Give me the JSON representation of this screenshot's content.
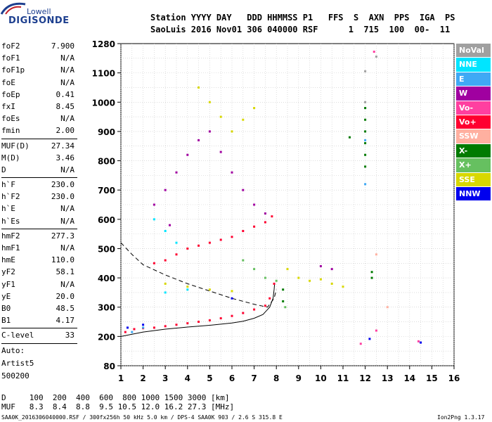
{
  "logo": {
    "top": "Lowell",
    "main": "DIGISONDE"
  },
  "header": {
    "line1": "Station YYYY DAY   DDD HHMMSS P1   FFS  S  AXN  PPS  IGA  PS",
    "line2": "SaoLuis 2016 Nov01 306 040000 RSF      1  715  100  00-  11"
  },
  "params": [
    {
      "name": "foF2",
      "value": "7.900"
    },
    {
      "name": "foF1",
      "value": "N/A"
    },
    {
      "name": "foF1p",
      "value": "N/A"
    },
    {
      "name": "foE",
      "value": "N/A"
    },
    {
      "name": "foEp",
      "value": "0.41"
    },
    {
      "name": "fxI",
      "value": "8.45"
    },
    {
      "name": "foEs",
      "value": "N/A"
    },
    {
      "name": "fmin",
      "value": "2.00"
    },
    {
      "name": "MUF(D)",
      "value": "27.34"
    },
    {
      "name": "M(D)",
      "value": "3.46"
    },
    {
      "name": "D",
      "value": "N/A"
    },
    {
      "name": "h`F",
      "value": "230.0"
    },
    {
      "name": "h`F2",
      "value": "230.0"
    },
    {
      "name": "h`E",
      "value": "N/A"
    },
    {
      "name": "h`Es",
      "value": "N/A"
    },
    {
      "name": "hmF2",
      "value": "277.3"
    },
    {
      "name": "hmF1",
      "value": "N/A"
    },
    {
      "name": "hmE",
      "value": "110.0"
    },
    {
      "name": "yF2",
      "value": "58.1"
    },
    {
      "name": "yF1",
      "value": "N/A"
    },
    {
      "name": "yE",
      "value": "20.0"
    },
    {
      "name": "B0",
      "value": "48.5"
    },
    {
      "name": "B1",
      "value": "4.17"
    },
    {
      "name": "C-level",
      "value": "33"
    }
  ],
  "auto_label": "Auto:",
  "artist_label": "Artist5",
  "artist_version": "500200",
  "bottom": {
    "d_line": "D     100  200  400  600  800 1000 1500 3000 [km]",
    "muf_line": "MUF   8.3  8.4  8.8  9.5 10.5 12.0 16.2 27.3 [MHz]",
    "file_line": "SAA0K_2016306040000.RSF / 300fx256h 50 kHz 5.0 km / DPS-4 SAA0K 903 / 2.6 S 315.8 E",
    "version": "Ion2Png 1.3.17"
  },
  "legend": [
    {
      "label": "NoVal",
      "color": "#a0a0a0"
    },
    {
      "label": "NNE",
      "color": "#00e5ff"
    },
    {
      "label": "E",
      "color": "#3fa9f5"
    },
    {
      "label": "W",
      "color": "#a000a0"
    },
    {
      "label": "Vo-",
      "color": "#ff3fa0"
    },
    {
      "label": "Vo+",
      "color": "#ff0030"
    },
    {
      "label": "SSW",
      "color": "#ffb0a0"
    },
    {
      "label": "X-",
      "color": "#007a00"
    },
    {
      "label": "X+",
      "color": "#66c060"
    },
    {
      "label": "SSE",
      "color": "#d8d800"
    },
    {
      "label": "NNW",
      "color": "#0000ee"
    }
  ],
  "chart_data": {
    "type": "scatter",
    "title": "",
    "xlabel": "",
    "ylabel": "",
    "xlim": [
      1,
      16
    ],
    "ylim": [
      80,
      1280
    ],
    "x_ticks": [
      1,
      2,
      3,
      4,
      5,
      6,
      7,
      8,
      9,
      10,
      11,
      12,
      13,
      14,
      15,
      16
    ],
    "y_ticks": [
      80,
      200,
      300,
      400,
      500,
      600,
      700,
      800,
      900,
      1000,
      1100,
      1280
    ],
    "grid": true,
    "legend_position": "right",
    "series": [
      {
        "name": "Vo+",
        "color": "#ff0030",
        "points": [
          [
            1.2,
            215
          ],
          [
            1.6,
            225
          ],
          [
            2.0,
            228
          ],
          [
            2.5,
            230
          ],
          [
            3.0,
            235
          ],
          [
            3.5,
            240
          ],
          [
            4.0,
            245
          ],
          [
            4.5,
            250
          ],
          [
            5.0,
            255
          ],
          [
            5.5,
            262
          ],
          [
            6.0,
            270
          ],
          [
            6.5,
            280
          ],
          [
            7.0,
            292
          ],
          [
            7.5,
            305
          ],
          [
            7.7,
            330
          ],
          [
            7.9,
            380
          ],
          [
            2.5,
            450
          ],
          [
            3.0,
            460
          ],
          [
            3.5,
            480
          ],
          [
            4.0,
            500
          ],
          [
            4.5,
            510
          ],
          [
            5.0,
            520
          ],
          [
            5.5,
            530
          ],
          [
            6.0,
            540
          ],
          [
            6.5,
            560
          ],
          [
            7.0,
            575
          ],
          [
            7.5,
            590
          ],
          [
            7.8,
            610
          ]
        ]
      },
      {
        "name": "W",
        "color": "#a000a0",
        "points": [
          [
            3.0,
            700
          ],
          [
            3.5,
            760
          ],
          [
            4.0,
            820
          ],
          [
            4.5,
            870
          ],
          [
            5.0,
            900
          ],
          [
            5.5,
            830
          ],
          [
            6.0,
            760
          ],
          [
            6.5,
            700
          ],
          [
            7.0,
            650
          ],
          [
            7.5,
            620
          ],
          [
            2.5,
            650
          ],
          [
            3.2,
            580
          ],
          [
            10.0,
            440
          ],
          [
            10.5,
            430
          ]
        ]
      },
      {
        "name": "SSE",
        "color": "#d8d800",
        "points": [
          [
            4.5,
            1050
          ],
          [
            5.0,
            1000
          ],
          [
            5.5,
            950
          ],
          [
            6.0,
            900
          ],
          [
            6.5,
            940
          ],
          [
            7.0,
            980
          ],
          [
            8.5,
            430
          ],
          [
            9.0,
            400
          ],
          [
            9.5,
            390
          ],
          [
            10.0,
            395
          ],
          [
            10.5,
            380
          ],
          [
            11.0,
            370
          ],
          [
            3.0,
            380
          ],
          [
            4.0,
            370
          ],
          [
            5.0,
            360
          ],
          [
            6.0,
            355
          ]
        ]
      },
      {
        "name": "NNE",
        "color": "#00e5ff",
        "points": [
          [
            2.5,
            600
          ],
          [
            3.0,
            560
          ],
          [
            3.5,
            520
          ],
          [
            3.0,
            350
          ],
          [
            4.0,
            360
          ]
        ]
      },
      {
        "name": "X-",
        "color": "#007a00",
        "points": [
          [
            12.0,
            980
          ],
          [
            12.0,
            940
          ],
          [
            12.0,
            900
          ],
          [
            12.0,
            860
          ],
          [
            12.0,
            820
          ],
          [
            12.0,
            780
          ],
          [
            12.3,
            400
          ],
          [
            12.3,
            420
          ],
          [
            11.3,
            880
          ],
          [
            8.3,
            360
          ],
          [
            8.3,
            320
          ]
        ]
      },
      {
        "name": "X+",
        "color": "#66c060",
        "points": [
          [
            6.5,
            460
          ],
          [
            7.0,
            430
          ],
          [
            7.5,
            400
          ],
          [
            8.0,
            390
          ],
          [
            8.4,
            300
          ]
        ]
      },
      {
        "name": "E",
        "color": "#3fa9f5",
        "points": [
          [
            1.5,
            215
          ],
          [
            2.0,
            230
          ],
          [
            12.0,
            870
          ],
          [
            12.0,
            720
          ]
        ]
      },
      {
        "name": "NNW",
        "color": "#0000ee",
        "points": [
          [
            1.3,
            230
          ],
          [
            2.0,
            240
          ],
          [
            6.0,
            330
          ],
          [
            12.2,
            190
          ],
          [
            14.5,
            175
          ]
        ]
      },
      {
        "name": "Vo-",
        "color": "#ff3fa0",
        "points": [
          [
            12.4,
            1230
          ],
          [
            12.5,
            220
          ],
          [
            14.4,
            180
          ],
          [
            11.8,
            170
          ]
        ]
      },
      {
        "name": "SSW",
        "color": "#ffb0a0",
        "points": [
          [
            12.5,
            480
          ],
          [
            13.0,
            300
          ]
        ]
      },
      {
        "name": "NoVal",
        "color": "#a0a0a0",
        "points": [
          [
            12.0,
            1110
          ],
          [
            12.0,
            1000
          ],
          [
            12.5,
            1200
          ]
        ]
      }
    ],
    "lines": [
      {
        "name": "profile-solid",
        "style": "solid",
        "points": [
          [
            1.0,
            200
          ],
          [
            2.0,
            215
          ],
          [
            3.0,
            225
          ],
          [
            4.0,
            232
          ],
          [
            5.0,
            238
          ],
          [
            6.0,
            246
          ],
          [
            6.5,
            252
          ],
          [
            7.0,
            262
          ],
          [
            7.4,
            275
          ],
          [
            7.7,
            300
          ],
          [
            7.85,
            330
          ],
          [
            7.9,
            360
          ],
          [
            7.92,
            380
          ]
        ]
      },
      {
        "name": "trace-dashed",
        "style": "dashed",
        "points": [
          [
            1.0,
            520
          ],
          [
            1.5,
            480
          ],
          [
            2.0,
            445
          ],
          [
            3.0,
            410
          ],
          [
            4.0,
            380
          ],
          [
            5.0,
            355
          ],
          [
            6.0,
            330
          ],
          [
            7.0,
            310
          ],
          [
            7.6,
            300
          ],
          [
            7.9,
            330
          ],
          [
            8.0,
            360
          ]
        ]
      }
    ]
  }
}
